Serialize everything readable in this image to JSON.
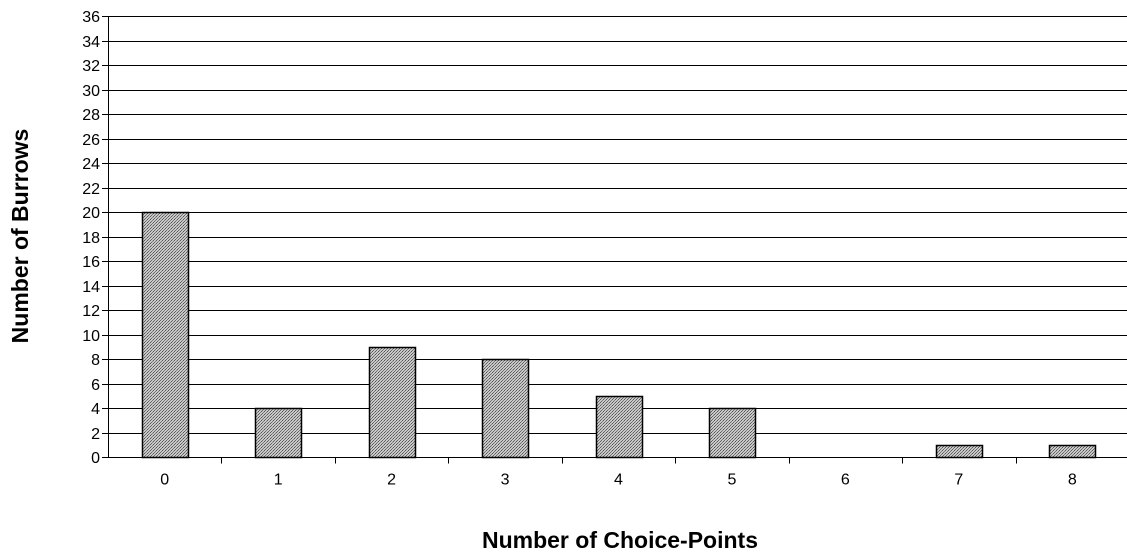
{
  "chart_data": {
    "type": "bar",
    "categories": [
      "0",
      "1",
      "2",
      "3",
      "4",
      "5",
      "6",
      "7",
      "8"
    ],
    "values": [
      20,
      4,
      9,
      8,
      5,
      4,
      0,
      1,
      1
    ],
    "xlabel": "Number of Choice-Points",
    "ylabel": "Number of Burrows",
    "ylim": [
      0,
      36
    ],
    "yticks": [
      0,
      2,
      4,
      6,
      8,
      10,
      12,
      14,
      16,
      18,
      20,
      22,
      24,
      26,
      28,
      30,
      32,
      34,
      36
    ],
    "grid": true,
    "legend": "none",
    "bar_fill": "#b0b0b0",
    "bar_stroke": "#000000"
  }
}
